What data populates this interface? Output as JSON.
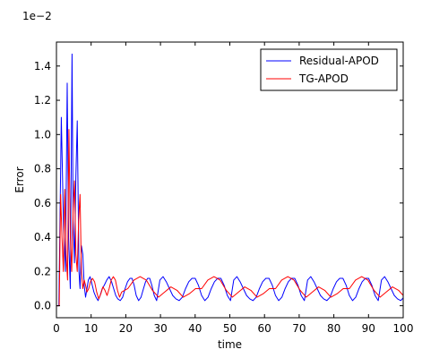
{
  "chart_data": {
    "type": "line",
    "xlabel": "time",
    "ylabel": "Error",
    "y_offset_label": "1e−2",
    "xlim": [
      0,
      100
    ],
    "ylim": [
      -0.07,
      1.54
    ],
    "x_ticks": [
      0,
      10,
      20,
      30,
      40,
      50,
      60,
      70,
      80,
      90,
      100
    ],
    "x_tick_labels": [
      "0",
      "10",
      "20",
      "30",
      "40",
      "50",
      "60",
      "70",
      "80",
      "90",
      "100"
    ],
    "y_ticks": [
      0.0,
      0.2,
      0.4,
      0.6,
      0.8,
      1.0,
      1.2,
      1.4
    ],
    "y_tick_labels": [
      "0.0",
      "0.2",
      "0.4",
      "0.6",
      "0.8",
      "1.0",
      "1.2",
      "1.4"
    ],
    "grid": false,
    "legend_position": "top-right",
    "series": [
      {
        "name": "Residual-APOD",
        "color": "#0000ff",
        "x": [
          0,
          0.7,
          1.4,
          2.0,
          2.6,
          3.1,
          3.5,
          4.0,
          4.5,
          4.8,
          5.2,
          5.6,
          6.0,
          6.5,
          6.8,
          7.2,
          7.6,
          8.0,
          8.4,
          8.8,
          9.2,
          9.7,
          10.2,
          10.8,
          11.4,
          12.0,
          12.6,
          13.2,
          13.8,
          14.5,
          15.2,
          15.9,
          16.5,
          17.1,
          17.7,
          18.4,
          19.1,
          19.8,
          20.5,
          21.2,
          21.8,
          22.4,
          23.0,
          23.7,
          24.4,
          25.1,
          25.7,
          26.3,
          26.9,
          27.5,
          28.2,
          28.9
        ],
        "values": [
          0.0,
          0.0,
          1.1,
          0.5,
          0.2,
          1.3,
          0.4,
          0.1,
          1.47,
          0.5,
          0.25,
          0.75,
          1.08,
          0.2,
          0.1,
          0.35,
          0.3,
          0.12,
          0.05,
          0.1,
          0.15,
          0.17,
          0.13,
          0.08,
          0.05,
          0.03,
          0.06,
          0.1,
          0.12,
          0.15,
          0.17,
          0.14,
          0.1,
          0.06,
          0.04,
          0.03,
          0.05,
          0.1,
          0.14,
          0.16,
          0.16,
          0.12,
          0.06,
          0.03,
          0.05,
          0.1,
          0.14,
          0.16,
          0.16,
          0.12,
          0.06,
          0.03
        ],
        "period": 7.1,
        "periodic_pattern_start": 14.5,
        "periodic_pattern": [
          0.15,
          0.17,
          0.14,
          0.1,
          0.06,
          0.04,
          0.03,
          0.05,
          0.1,
          0.14,
          0.16,
          0.16,
          0.12,
          0.06,
          0.03,
          0.05,
          0.1,
          0.14,
          0.16,
          0.16,
          0.12,
          0.06,
          0.03
        ]
      },
      {
        "name": "TG-APOD",
        "color": "#ff0000",
        "x": [
          0,
          0.8,
          1.2,
          1.6,
          2.0,
          2.4,
          2.8,
          3.2,
          3.6,
          4.0,
          4.4,
          4.8,
          5.2,
          5.6,
          6.0,
          6.4,
          6.8,
          7.2,
          7.6,
          8.0,
          8.4,
          8.8,
          9.3,
          9.8,
          10.4,
          11.0,
          11.6,
          12.2,
          12.8,
          13.4,
          14.0,
          14.6,
          15.2,
          15.8,
          16.4,
          17.0,
          17.6,
          18.2,
          18.8
        ],
        "values": [
          0.0,
          0.0,
          0.65,
          0.4,
          0.2,
          0.68,
          0.3,
          0.15,
          1.03,
          0.4,
          0.2,
          0.55,
          0.73,
          0.3,
          0.2,
          0.5,
          0.65,
          0.2,
          0.1,
          0.15,
          0.12,
          0.08,
          0.1,
          0.14,
          0.16,
          0.14,
          0.08,
          0.04,
          0.07,
          0.11,
          0.09,
          0.06,
          0.1,
          0.15,
          0.17,
          0.15,
          0.09,
          0.05,
          0.08
        ],
        "period": 7.1,
        "periodic_pattern_start": 15.2,
        "periodic_pattern": [
          0.1,
          0.15,
          0.17,
          0.15,
          0.09,
          0.05,
          0.08,
          0.11,
          0.09,
          0.05,
          0.07,
          0.1
        ]
      }
    ]
  }
}
